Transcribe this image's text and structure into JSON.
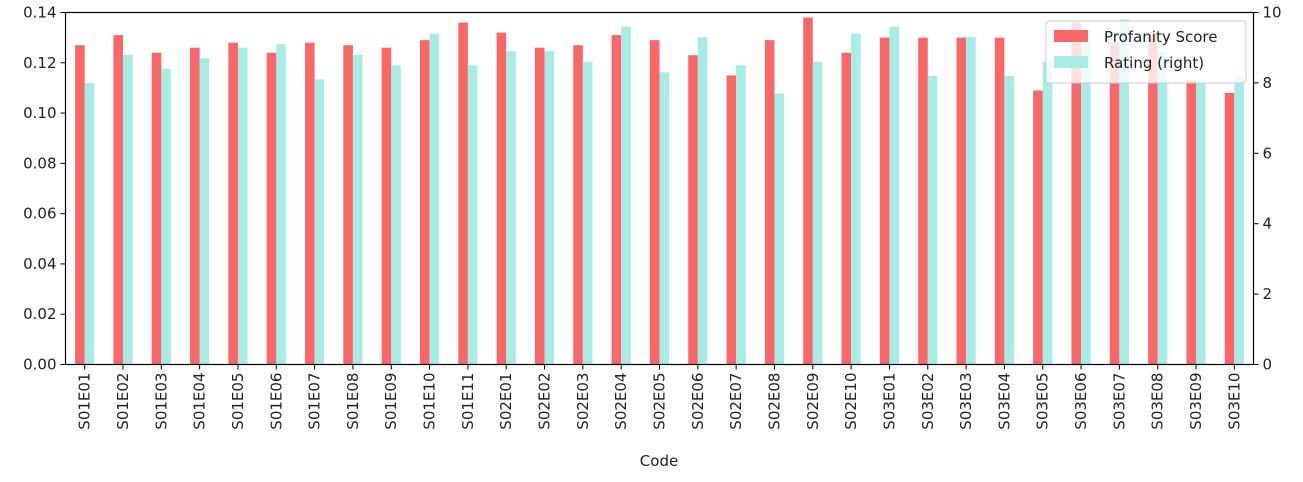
{
  "chart_data": {
    "type": "bar",
    "xlabel": "Code",
    "categories": [
      "S01E01",
      "S01E02",
      "S01E03",
      "S01E04",
      "S01E05",
      "S01E06",
      "S01E07",
      "S01E08",
      "S01E09",
      "S01E10",
      "S01E11",
      "S02E01",
      "S02E02",
      "S02E03",
      "S02E04",
      "S02E05",
      "S02E06",
      "S02E07",
      "S02E08",
      "S02E09",
      "S02E10",
      "S03E01",
      "S03E02",
      "S03E03",
      "S03E04",
      "S03E05",
      "S03E06",
      "S03E07",
      "S03E08",
      "S03E09",
      "S03E10"
    ],
    "series": [
      {
        "name": "Profanity Score",
        "axis": "left",
        "color": "#f96767",
        "values": [
          0.127,
          0.131,
          0.124,
          0.126,
          0.128,
          0.124,
          0.128,
          0.127,
          0.126,
          0.129,
          0.136,
          0.132,
          0.126,
          0.127,
          0.131,
          0.129,
          0.123,
          0.115,
          0.129,
          0.138,
          0.124,
          0.13,
          0.13,
          0.13,
          0.13,
          0.109,
          0.136,
          0.128,
          0.131,
          0.113,
          0.108
        ]
      },
      {
        "name": "Rating (right)",
        "axis": "right",
        "color": "#a7ece6",
        "values": [
          8.0,
          8.8,
          8.4,
          8.7,
          9.0,
          9.1,
          8.1,
          8.8,
          8.5,
          9.4,
          8.5,
          8.9,
          8.9,
          8.6,
          9.6,
          8.3,
          9.3,
          8.5,
          7.7,
          8.6,
          9.4,
          9.6,
          8.2,
          9.3,
          8.2,
          8.6,
          9.5,
          9.8,
          8.9,
          8.0,
          8.2
        ]
      }
    ],
    "ylim_left": [
      0,
      0.14
    ],
    "yticks_left": [
      "0.00",
      "0.02",
      "0.04",
      "0.06",
      "0.08",
      "0.10",
      "0.12",
      "0.14"
    ],
    "ylim_right": [
      0,
      10
    ],
    "yticks_right": [
      "0",
      "2",
      "4",
      "6",
      "8",
      "10"
    ],
    "legend_position": "upper right",
    "grid": false
  }
}
